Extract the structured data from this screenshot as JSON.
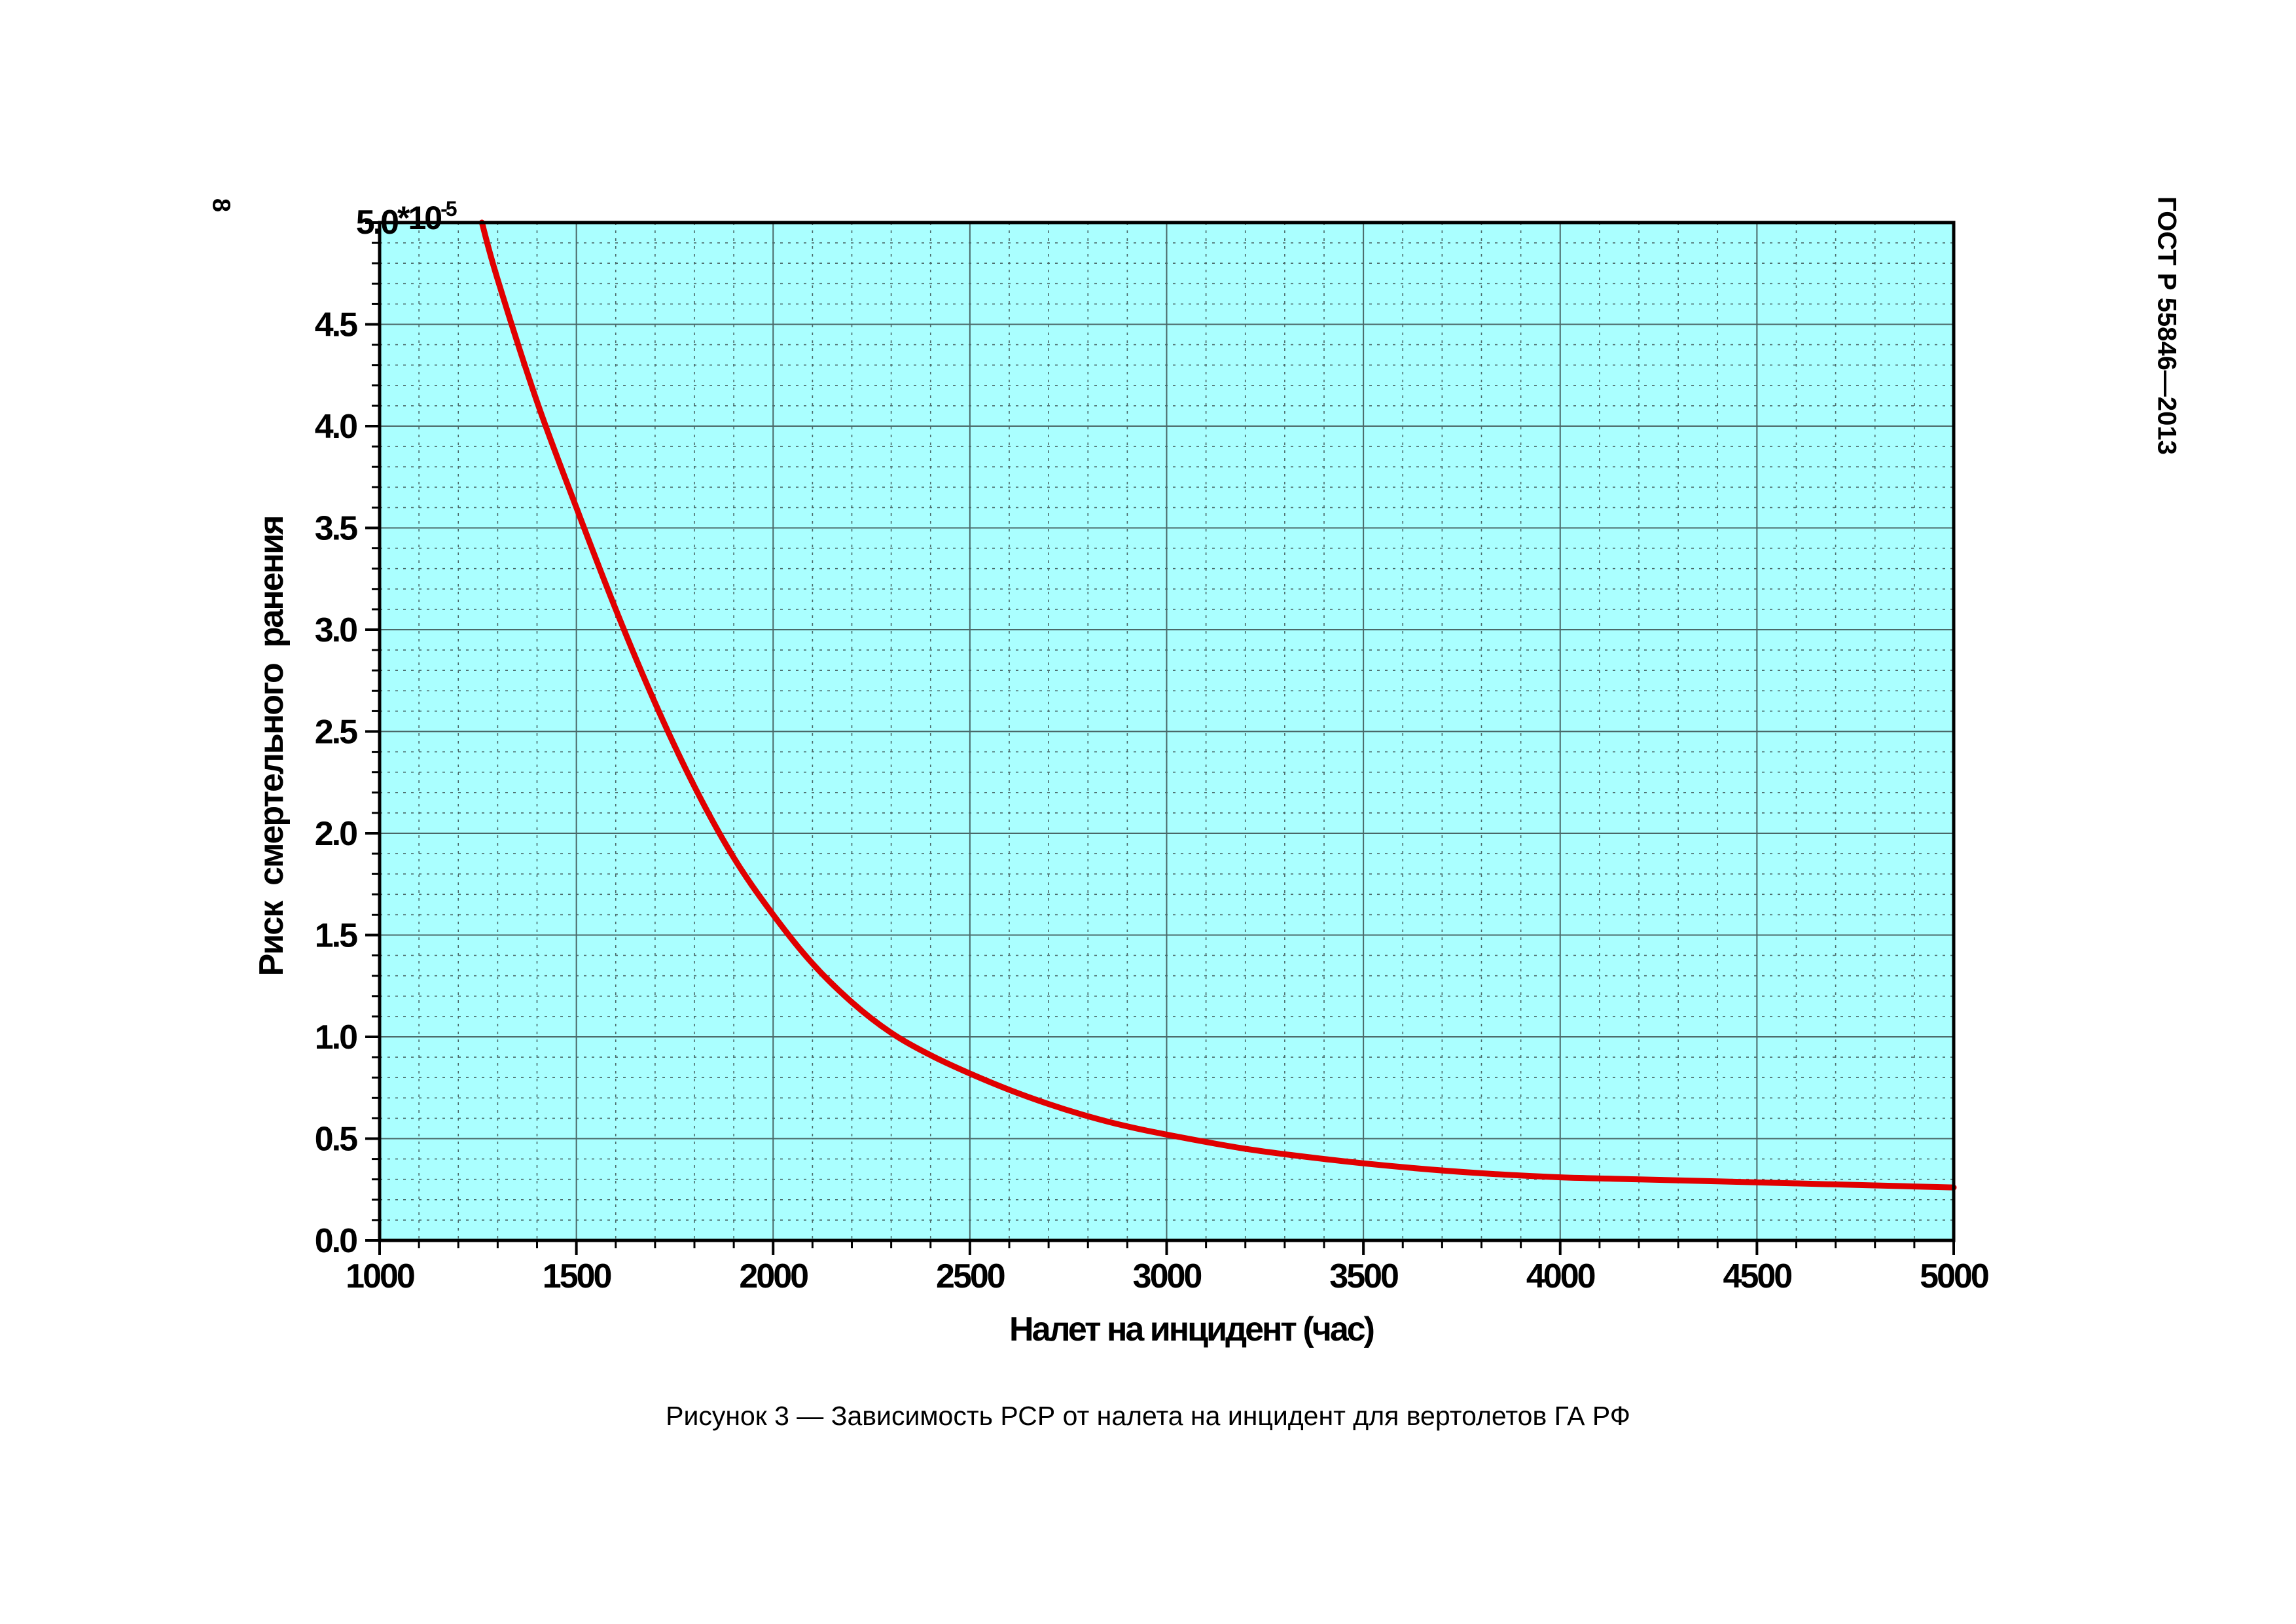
{
  "page": {
    "number": "8",
    "standard": "ГОСТ Р 55846—2013",
    "caption": "Рисунок 3 — Зависимость РСР от налета на инцидент для вертолетов ГА РФ"
  },
  "chart_data": {
    "type": "line",
    "title": "",
    "xlabel": "Налет на инцидент (час)",
    "ylabel": "Риск  смертельного  ранения",
    "y_exponent_label": "*10",
    "y_exponent_power": "-5",
    "xlim": [
      1000,
      5000
    ],
    "ylim": [
      0.0,
      5.0
    ],
    "x_ticks": [
      1000,
      1500,
      2000,
      2500,
      3000,
      3500,
      4000,
      4500,
      5000
    ],
    "x_tick_labels": [
      "1000",
      "1500",
      "2000",
      "2500",
      "3000",
      "3500",
      "4000",
      "4500",
      "5000"
    ],
    "y_ticks": [
      0.0,
      0.5,
      1.0,
      1.5,
      2.0,
      2.5,
      3.0,
      3.5,
      4.0,
      4.5,
      5.0
    ],
    "y_tick_labels": [
      "0.0",
      "0.5",
      "1.0",
      "1.5",
      "2.0",
      "2.5",
      "3.0",
      "3.5",
      "4.0",
      "4.5",
      "5.0"
    ],
    "x_major_grid_step": 500,
    "x_minor_grid_step": 100,
    "y_major_grid_step": 0.5,
    "y_minor_grid_step": 0.1,
    "grid": true,
    "colors": {
      "plot_background": "#aaffff",
      "line": "#e00000",
      "major_grid": "#4a6868",
      "minor_grid": "#4a6868"
    },
    "series": [
      {
        "x": [
          1260,
          1300,
          1400,
          1500,
          1600,
          1700,
          1800,
          1900,
          2000,
          2100,
          2200,
          2300,
          2400,
          2500,
          2600,
          2700,
          2800,
          2900,
          3000,
          3200,
          3400,
          3600,
          3800,
          4000,
          4200,
          4400,
          4600,
          4800,
          5000
        ],
        "y": [
          5.0,
          4.72,
          4.12,
          3.6,
          3.1,
          2.64,
          2.23,
          1.88,
          1.6,
          1.36,
          1.17,
          1.02,
          0.91,
          0.82,
          0.74,
          0.67,
          0.61,
          0.56,
          0.52,
          0.45,
          0.4,
          0.36,
          0.33,
          0.31,
          0.3,
          0.29,
          0.28,
          0.27,
          0.26
        ]
      }
    ]
  }
}
